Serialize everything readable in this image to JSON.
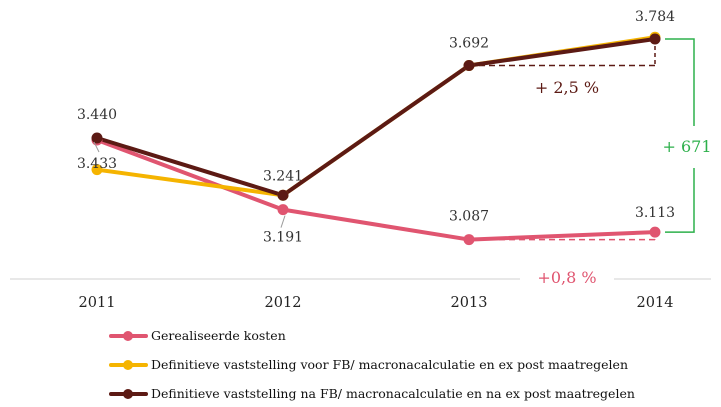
{
  "chart_data": {
    "type": "line",
    "title": "",
    "xlabel": "",
    "ylabel": "",
    "categories": [
      "2011",
      "2012",
      "2013",
      "2014"
    ],
    "ylim": [
      2950,
      3850
    ],
    "grid": false,
    "legend_position": "bottom-left",
    "series": [
      {
        "name": "Gerealiseerde kosten",
        "color": "#e05570",
        "values": [
          3433,
          3191,
          3087,
          3113
        ],
        "data_labels": [
          "3.433",
          "3.191",
          "3.087",
          "3.113"
        ]
      },
      {
        "name": "Definitieve vaststelling voor FB/ macronacalculatie en ex post maatregelen",
        "color": "#f5b400",
        "values": [
          3330,
          3241,
          3692,
          3790
        ],
        "data_labels": []
      },
      {
        "name": "Definitieve vaststelling na FB/ macronacalculatie en na ex post maatregelen",
        "color": "#5c1a14",
        "values": [
          3440,
          3241,
          3692,
          3784
        ],
        "data_labels": [
          "3.440",
          "3.241",
          "3.692",
          "3.784"
        ]
      }
    ],
    "annotations": [
      {
        "id": "pct-upper",
        "text": "+ 2,5 %",
        "color": "#5c1a14"
      },
      {
        "id": "pct-lower",
        "text": "+0,8 %",
        "color": "#e05570"
      },
      {
        "id": "diff",
        "text": "+ 671",
        "color": "#2db04b"
      }
    ]
  }
}
